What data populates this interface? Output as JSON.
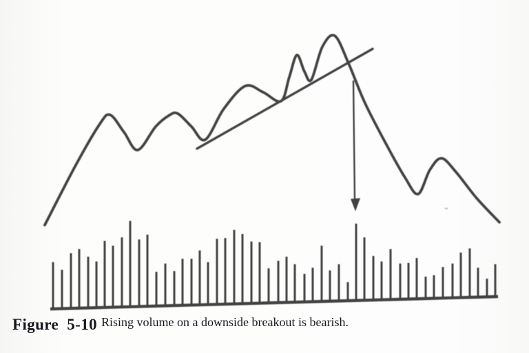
{
  "figure": {
    "label": "Figure 5-10",
    "caption": "Rising volume on a downside breakout is bearish."
  },
  "colors": {
    "ink": "#424242",
    "caption_ink": "#17171f",
    "background": "#fcfcfc"
  },
  "chart_data": {
    "type": "line",
    "subtype": "hand-drawn schematic: price line with ascending trendline, downside-breakout arrow, and volume bar panel",
    "title": "Figure 5-10",
    "caption": "Rising volume on a downside breakout is bearish.",
    "xlabel": "",
    "ylabel": "",
    "axes": "none (no ticks, no numeric scale)",
    "units": "image pixels, y increases downward",
    "price_line_points": [
      [
        65,
        327
      ],
      [
        110,
        240
      ],
      [
        145,
        180
      ],
      [
        160,
        167
      ],
      [
        180,
        192
      ],
      [
        200,
        218
      ],
      [
        226,
        184
      ],
      [
        245,
        168
      ],
      [
        258,
        165
      ],
      [
        278,
        184
      ],
      [
        298,
        203
      ],
      [
        325,
        158
      ],
      [
        356,
        125
      ],
      [
        382,
        134
      ],
      [
        408,
        147
      ],
      [
        420,
        112
      ],
      [
        431,
        80
      ],
      [
        442,
        104
      ],
      [
        452,
        116
      ],
      [
        468,
        68
      ],
      [
        486,
        52
      ],
      [
        506,
        92
      ],
      [
        530,
        150
      ],
      [
        562,
        212
      ],
      [
        588,
        258
      ],
      [
        607,
        282
      ],
      [
        624,
        247
      ],
      [
        641,
        230
      ],
      [
        662,
        250
      ],
      [
        692,
        288
      ],
      [
        725,
        323
      ]
    ],
    "trendline": [
      [
        286,
        216
      ],
      [
        541,
        71
      ]
    ],
    "breakout_arrow": {
      "shaft": [
        [
          513,
          117
        ],
        [
          515,
          290
        ]
      ],
      "head": [
        [
          516,
          307
        ],
        [
          509,
          289
        ],
        [
          523,
          288
        ]
      ]
    },
    "volume_baseline": [
      [
        73,
        449
      ],
      [
        723,
        431
      ]
    ],
    "volume_bars": [
      [
        77,
        381
      ],
      [
        90,
        392
      ],
      [
        103,
        368
      ],
      [
        115,
        362
      ],
      [
        128,
        373
      ],
      [
        140,
        380
      ],
      [
        152,
        350
      ],
      [
        164,
        357
      ],
      [
        177,
        345
      ],
      [
        189,
        321
      ],
      [
        202,
        348
      ],
      [
        214,
        341
      ],
      [
        227,
        395
      ],
      [
        240,
        383
      ],
      [
        253,
        394
      ],
      [
        265,
        376
      ],
      [
        278,
        376
      ],
      [
        290,
        364
      ],
      [
        302,
        381
      ],
      [
        315,
        347
      ],
      [
        327,
        346
      ],
      [
        340,
        334
      ],
      [
        352,
        340
      ],
      [
        365,
        351
      ],
      [
        377,
        352
      ],
      [
        390,
        390
      ],
      [
        404,
        379
      ],
      [
        416,
        373
      ],
      [
        428,
        384
      ],
      [
        442,
        398
      ],
      [
        454,
        389
      ],
      [
        467,
        357
      ],
      [
        479,
        393
      ],
      [
        492,
        384
      ],
      [
        505,
        410
      ],
      [
        517,
        325
      ],
      [
        529,
        345
      ],
      [
        542,
        372
      ],
      [
        554,
        380
      ],
      [
        567,
        362
      ],
      [
        581,
        383
      ],
      [
        593,
        382
      ],
      [
        605,
        375
      ],
      [
        618,
        402
      ],
      [
        630,
        400
      ],
      [
        643,
        388
      ],
      [
        657,
        383
      ],
      [
        669,
        367
      ],
      [
        682,
        361
      ],
      [
        694,
        389
      ],
      [
        707,
        405
      ],
      [
        719,
        384
      ]
    ],
    "speck": [
      648,
      303
    ]
  }
}
